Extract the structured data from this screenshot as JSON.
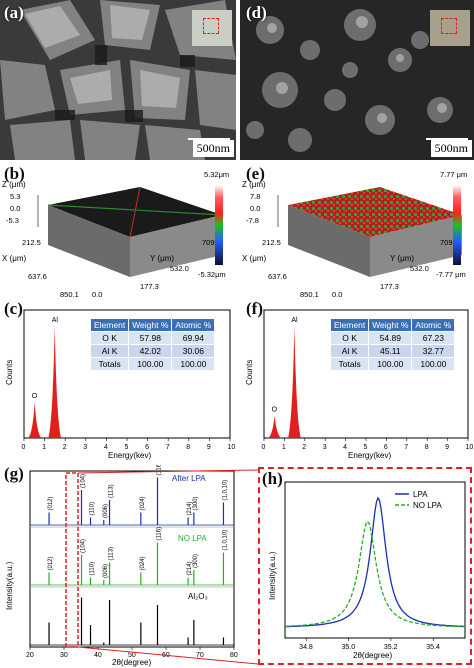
{
  "panels": {
    "a": {
      "label": "(a)",
      "scale": "500nm"
    },
    "b": {
      "label": "(b)"
    },
    "c": {
      "label": "(c)"
    },
    "d": {
      "label": "(d)",
      "scale": "500nm"
    },
    "e": {
      "label": "(e)"
    },
    "f": {
      "label": "(f)"
    },
    "g": {
      "label": "(g)"
    },
    "h": {
      "label": "(h)"
    }
  },
  "topo_b": {
    "z_label": "Z (μm)",
    "z_max": "5.3",
    "z_zero": "0.0",
    "z_min": "-5.3",
    "x_label": "X (μm)",
    "x_ticks": [
      "212.5",
      "637.6",
      "850.1"
    ],
    "y_label": "Y (μm)",
    "y_ticks": [
      "709.3",
      "532.0",
      "177.3"
    ],
    "origin": "0.0",
    "bar_top": "5.32μm",
    "bar_bottom": "-5.32μm"
  },
  "topo_e": {
    "z_label": "Z (μm)",
    "z_max": "7.8",
    "z_zero": "0.0",
    "z_min": "-7.8",
    "x_label": "X (μm)",
    "x_ticks": [
      "212.5",
      "637.6",
      "850.1"
    ],
    "y_label": "Y (μm)",
    "y_ticks": [
      "709.3",
      "532.0",
      "177.3"
    ],
    "origin": "0.0",
    "bar_top": "7.77 μm",
    "bar_bottom": "-7.77 μm"
  },
  "eds_c": {
    "headers": [
      "Element",
      "Weight %",
      "Atomic %"
    ],
    "rows": [
      [
        "O K",
        "57.98",
        "69.94"
      ],
      [
        "Al K",
        "42.02",
        "30.06"
      ],
      [
        "Totals",
        "100.00",
        "100.00"
      ]
    ],
    "peak_o": "O",
    "peak_al": "Al",
    "ylabel": "Counts",
    "xlabel": "Energy(kev)",
    "x_ticks": [
      "0",
      "1",
      "2",
      "3",
      "4",
      "5",
      "6",
      "7",
      "8",
      "9",
      "10"
    ]
  },
  "eds_f": {
    "headers": [
      "Element",
      "Weight %",
      "Atomic %"
    ],
    "rows": [
      [
        "O K",
        "54.89",
        "67.23"
      ],
      [
        "Al K",
        "45.11",
        "32.77"
      ],
      [
        "Totals",
        "100.00",
        "100.00"
      ]
    ],
    "peak_o": "O",
    "peak_al": "Al",
    "ylabel": "Counts",
    "xlabel": "Energy(kev)",
    "x_ticks": [
      "0",
      "1",
      "2",
      "3",
      "4",
      "5",
      "6",
      "7",
      "8",
      "9",
      "10"
    ]
  },
  "xrd_g": {
    "ylabel": "Intensity(a.u.)",
    "xlabel": "2θ(degree)",
    "x_ticks": [
      "20",
      "30",
      "40",
      "50",
      "60",
      "70",
      "80"
    ],
    "series_labels": [
      "After LPA",
      "NO LPA",
      "Al₂O₃"
    ],
    "peak_labels": [
      "(012)",
      "(104)",
      "(110)",
      "(006)",
      "(113)",
      "(024)",
      "(116)",
      "(214)",
      "(300)",
      "(1,0,10)"
    ]
  },
  "xrd_h": {
    "ylabel": "Intensity(a.u.)",
    "xlabel": "2θ(degree)",
    "x_ticks": [
      "34.8",
      "35.0",
      "35.2",
      "35.4"
    ],
    "legend": [
      "LPA",
      "NO LPA"
    ]
  },
  "chart_data": [
    {
      "type": "bar",
      "title": "",
      "xlabel": "Energy(kev)",
      "ylabel": "Counts",
      "xlim": [
        0,
        10
      ],
      "x": [
        0.52,
        1.49
      ],
      "values": [
        0.32,
        1.0
      ],
      "annotations": [
        "O",
        "Al"
      ]
    },
    {
      "type": "bar",
      "title": "",
      "xlabel": "Energy(kev)",
      "ylabel": "Counts",
      "xlim": [
        0,
        10
      ],
      "x": [
        0.52,
        1.49
      ],
      "values": [
        0.2,
        1.0
      ],
      "annotations": [
        "O",
        "Al"
      ]
    },
    {
      "type": "line",
      "xlabel": "2θ(degree)",
      "ylabel": "Intensity(a.u.)",
      "xlim": [
        20,
        80
      ],
      "peaks_2theta": [
        25.6,
        35.15,
        37.8,
        41.7,
        43.4,
        52.6,
        57.5,
        66.5,
        68.2,
        76.9
      ],
      "series": [
        {
          "name": "After LPA",
          "relative_intensity": [
            0.25,
            0.7,
            0.15,
            0.1,
            0.5,
            0.25,
            0.95,
            0.15,
            0.25,
            0.45
          ]
        },
        {
          "name": "NO LPA",
          "relative_intensity": [
            0.25,
            0.6,
            0.15,
            0.1,
            0.45,
            0.25,
            0.85,
            0.15,
            0.3,
            0.65
          ]
        },
        {
          "name": "Al₂O₃",
          "relative_intensity": [
            0.45,
            0.95,
            0.4,
            0.05,
            0.9,
            0.45,
            0.8,
            0.15,
            0.5,
            0.15
          ]
        }
      ]
    },
    {
      "type": "line",
      "xlabel": "2θ(degree)",
      "ylabel": "Intensity(a.u.)",
      "xlim": [
        34.7,
        35.55
      ],
      "series": [
        {
          "name": "LPA",
          "peak_x": 35.14,
          "width": 0.045,
          "color": "#1a2fb0"
        },
        {
          "name": "NO LPA",
          "peak_x": 35.09,
          "width": 0.05,
          "color": "#22b022"
        }
      ]
    }
  ],
  "colors": {
    "accent_red": "#e02020",
    "lpa_blue": "#1a2fb0",
    "nolpa_green": "#22b022",
    "eds_red": "#e0201c"
  }
}
